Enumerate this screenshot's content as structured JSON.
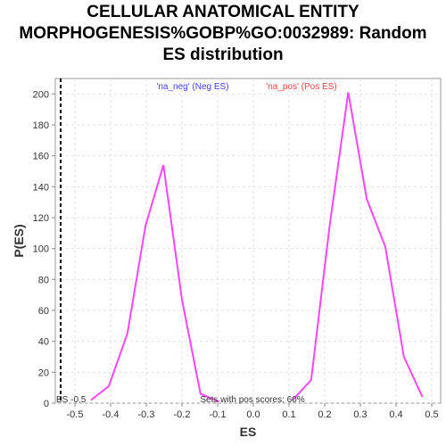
{
  "chart_data": {
    "type": "line",
    "title_lines": [
      "CELLULAR ANATOMICAL ENTITY",
      "MORPHOGENESIS%GOBP%GO:0032989: Random",
      "ES distribution"
    ],
    "xlabel": "ES",
    "ylabel": "P(ES)",
    "xlim": [
      -0.555,
      0.525
    ],
    "ylim": [
      0,
      210
    ],
    "x_ticks": [
      -0.5,
      -0.4,
      -0.3,
      -0.2,
      -0.1,
      0.0,
      0.1,
      0.2,
      0.3,
      0.4,
      0.5
    ],
    "x_tick_labels": [
      "-0.5",
      "-0.4",
      "-0.3",
      "-0.2",
      "-0.1",
      "0.0",
      "0.1",
      "0.2",
      "0.3",
      "0.4",
      "0.5"
    ],
    "y_ticks": [
      0,
      20,
      40,
      60,
      80,
      100,
      120,
      140,
      160,
      180,
      200
    ],
    "y_tick_labels": [
      "0",
      "20",
      "40",
      "60",
      "80",
      "100",
      "120",
      "140",
      "160",
      "180",
      "200"
    ],
    "grid": true,
    "series": [
      {
        "name": "'na_neg' (Neg ES)",
        "color": "#4040ff",
        "x": [
          -0.455,
          -0.405,
          -0.353,
          -0.302,
          -0.252,
          -0.2,
          -0.148,
          -0.096
        ],
        "y": [
          2,
          11,
          45,
          115,
          154,
          67,
          6,
          1
        ]
      },
      {
        "name": "'na_pos' (Pos ES)",
        "color": "#ff4040",
        "x": [
          0.11,
          0.162,
          0.214,
          0.266,
          0.318,
          0.37,
          0.422,
          0.474
        ],
        "y": [
          2,
          15,
          115,
          201,
          132,
          101,
          30,
          4
        ]
      }
    ],
    "line_color": "#ff44ff",
    "marker_line": {
      "x": -0.54,
      "label": "ES -0.5"
    },
    "annotation": "Sets with pos scores: 60%"
  }
}
